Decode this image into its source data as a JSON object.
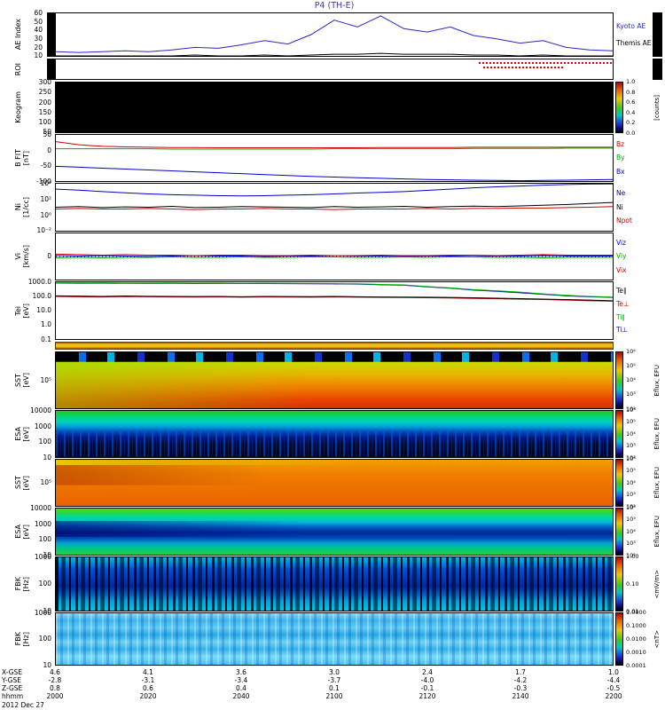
{
  "title": "P4 (TH-E)",
  "panels": {
    "ae": {
      "ylabel": "AE Index",
      "ticks": [
        "60",
        "50",
        "40",
        "30",
        "20",
        "10"
      ],
      "right_labels": [
        {
          "text": "Kyoto AE",
          "color": "#2828c8"
        },
        {
          "text": "Themis AE",
          "color": "#000000"
        }
      ]
    },
    "roi": {
      "ylabel": "ROI"
    },
    "keogram": {
      "ylabel": "Keogram",
      "ticks": [
        "300",
        "250",
        "200",
        "150",
        "100",
        "50"
      ],
      "colorbar": {
        "ticks": [
          "1.0",
          "0.8",
          "0.6",
          "0.4",
          "0.2",
          "0.0"
        ],
        "unit": "[counts]"
      }
    },
    "bfit": {
      "ylabel": "B FIT",
      "yunit": "[nT]",
      "ticks": [
        "50",
        "0",
        "-50",
        "-100"
      ],
      "right_labels": [
        {
          "text": "Bz",
          "color": "#cc0000"
        },
        {
          "text": "By",
          "color": "#00aa00"
        },
        {
          "text": "Bx",
          "color": "#0000cc"
        }
      ]
    },
    "ni": {
      "ylabel": "Ni",
      "yunit": "[1/cc]",
      "ticks": [
        "10⁴",
        "10²",
        "10⁰",
        "10⁻²"
      ],
      "right_labels": [
        {
          "text": "Ne",
          "color": "#0000cc"
        },
        {
          "text": "Ni",
          "color": "#000000"
        },
        {
          "text": "Npot",
          "color": "#cc0000"
        }
      ]
    },
    "vi": {
      "ylabel": "Vi",
      "yunit": "[km/s]",
      "ticks": [
        "0"
      ],
      "right_labels": [
        {
          "text": "Viz",
          "color": "#0000cc"
        },
        {
          "text": "Viy",
          "color": "#00aa00"
        },
        {
          "text": "Vix",
          "color": "#cc0000"
        }
      ]
    },
    "tei": {
      "ylabel": "Tei",
      "yunit": "[eV]",
      "ticks": [
        "1000.0",
        "100.0",
        "10.0",
        "1.0",
        "0.1"
      ],
      "right_labels": [
        {
          "text": "Te∥",
          "color": "#000000"
        },
        {
          "text": "Te⊥",
          "color": "#cc0000"
        },
        {
          "text": "Ti∥",
          "color": "#00aa00"
        },
        {
          "text": "Ti⊥",
          "color": "#0000cc"
        }
      ]
    },
    "sst_ion": {
      "ylabel": "SST",
      "yunit": "[eV]",
      "ticks": [
        "10⁵"
      ],
      "colorbar": {
        "ticks": [
          "10⁶",
          "10⁵",
          "10⁴",
          "10³",
          "10²"
        ],
        "unit": "Eflux, EFU"
      }
    },
    "esa_ion": {
      "ylabel": "ESA",
      "yunit": "[eV]",
      "ticks": [
        "10000",
        "1000",
        "100",
        "10"
      ],
      "colorbar": {
        "ticks": [
          "10⁶",
          "10⁵",
          "10⁴",
          "10³",
          "10²"
        ],
        "unit": "Eflux, EFU"
      }
    },
    "sst_elec": {
      "ylabel": "SST",
      "yunit": "[eV]",
      "ticks": [
        "10⁵"
      ],
      "colorbar": {
        "ticks": [
          "10⁶",
          "10⁵",
          "10⁴",
          "10³",
          "10²"
        ],
        "unit": "Eflux, EFU"
      }
    },
    "esa_elec": {
      "ylabel": "ESA",
      "yunit": "[eV]",
      "ticks": [
        "10000",
        "1000",
        "100",
        "10"
      ],
      "colorbar": {
        "ticks": [
          "10⁶",
          "10⁵",
          "10⁴",
          "10³",
          "10²"
        ],
        "unit": "Eflux, EFU"
      }
    },
    "fbk_e": {
      "ylabel": "FBK",
      "yunit": "[Hz]",
      "ticks": [
        "1000",
        "100",
        "10"
      ],
      "colorbar": {
        "ticks": [
          "1.00",
          "0.10",
          "0.01"
        ],
        "unit": "<mV/m>"
      }
    },
    "fbk_b": {
      "ylabel": "FBK",
      "yunit": "[Hz]",
      "ticks": [
        "1000",
        "100",
        "10"
      ],
      "colorbar": {
        "ticks": [
          "1.0000",
          "0.1000",
          "0.0100",
          "0.0010",
          "0.0001"
        ],
        "unit": "<nT>"
      }
    }
  },
  "time_axis": {
    "rows": [
      {
        "label": "X-GSE",
        "values": [
          "4.6",
          "4.1",
          "3.6",
          "3.0",
          "2.4",
          "1.7",
          "1.0"
        ]
      },
      {
        "label": "Y-GSE",
        "values": [
          "-2.8",
          "-3.1",
          "-3.4",
          "-3.7",
          "-4.0",
          "-4.2",
          "-4.4"
        ]
      },
      {
        "label": "Z-GSE",
        "values": [
          "0.8",
          "0.6",
          "0.4",
          "0.1",
          "-0.1",
          "-0.3",
          "-0.5"
        ]
      },
      {
        "label": "hhmm",
        "values": [
          "2000",
          "2020",
          "2040",
          "2100",
          "2120",
          "2140",
          "2200"
        ]
      }
    ],
    "date_label": "2012 Dec 27"
  },
  "chart_data": [
    {
      "id": "ae",
      "type": "line",
      "ylabel": "AE Index",
      "ylim": [
        10,
        60
      ],
      "log": false,
      "x_start": "2000",
      "x_end": "2200",
      "x": [
        0,
        5,
        10,
        15,
        20,
        25,
        30,
        35,
        40,
        45,
        50,
        55,
        60,
        65,
        70,
        75,
        80,
        85,
        90,
        95,
        100,
        105,
        110,
        115,
        120
      ],
      "series": [
        {
          "name": "Kyoto AE",
          "color": "#2828c8",
          "values": [
            15,
            14,
            15,
            16,
            15,
            17,
            20,
            19,
            23,
            28,
            24,
            35,
            52,
            44,
            57,
            42,
            38,
            44,
            34,
            30,
            25,
            28,
            20,
            17,
            16
          ]
        },
        {
          "name": "Themis AE",
          "color": "#000000",
          "values": [
            10,
            10,
            10,
            10,
            10,
            10,
            11,
            10,
            10,
            11,
            10,
            11,
            12,
            12,
            13,
            12,
            12,
            12,
            11,
            11,
            10,
            11,
            10,
            10,
            10
          ]
        }
      ]
    },
    {
      "id": "bfit",
      "type": "line",
      "ylabel": "B FIT [nT]",
      "ylim": [
        -100,
        50
      ],
      "log": false,
      "x": [
        0,
        5,
        10,
        15,
        20,
        25,
        30,
        35,
        40,
        45,
        50,
        55,
        60,
        65,
        70,
        75,
        80,
        85,
        90,
        95,
        100,
        105,
        110,
        115,
        120
      ],
      "series": [
        {
          "name": "Bz",
          "color": "#cc0000",
          "values": [
            28,
            18,
            13,
            11,
            10,
            9,
            9,
            8,
            8,
            8,
            8,
            8,
            8,
            8,
            9,
            9,
            9,
            9,
            10,
            10,
            10,
            10,
            10,
            10,
            10
          ]
        },
        {
          "name": "By",
          "color": "#00aa00",
          "values": [
            5,
            5,
            5,
            5,
            5,
            4,
            4,
            4,
            4,
            4,
            4,
            4,
            5,
            5,
            5,
            5,
            5,
            5,
            6,
            6,
            6,
            6,
            7,
            7,
            7
          ]
        },
        {
          "name": "Bx",
          "color": "#0000cc",
          "values": [
            -52,
            -55,
            -58,
            -61,
            -64,
            -67,
            -70,
            -73,
            -76,
            -79,
            -82,
            -85,
            -87,
            -89,
            -91,
            -93,
            -95,
            -96,
            -97,
            -98,
            -99,
            -98,
            -97,
            -96,
            -95
          ]
        }
      ]
    },
    {
      "id": "ni",
      "type": "line",
      "ylabel": "Ni [1/cc]",
      "ylim": [
        0.01,
        10000
      ],
      "log": true,
      "x": [
        0,
        5,
        10,
        15,
        20,
        25,
        30,
        35,
        40,
        45,
        50,
        55,
        60,
        65,
        70,
        75,
        80,
        85,
        90,
        95,
        100,
        105,
        110,
        115,
        120
      ],
      "series": [
        {
          "name": "Ne",
          "color": "#0000cc",
          "values": [
            2000,
            1500,
            1000,
            700,
            500,
            400,
            350,
            300,
            280,
            300,
            350,
            400,
            500,
            650,
            800,
            1000,
            1400,
            2000,
            3000,
            4000,
            5000,
            6500,
            8000,
            9000,
            9500
          ]
        },
        {
          "name": "Npot",
          "color": "#cc0000",
          "values": [
            6,
            7,
            6,
            6,
            7,
            6,
            5,
            6,
            6,
            7,
            6,
            6,
            5,
            6,
            6,
            6,
            7,
            6,
            7,
            7,
            8,
            8,
            9,
            10,
            12
          ]
        },
        {
          "name": "Ni",
          "color": "#000000",
          "values": [
            10,
            12,
            9,
            11,
            10,
            13,
            9,
            10,
            12,
            11,
            10,
            9,
            12,
            10,
            11,
            13,
            10,
            12,
            14,
            12,
            15,
            18,
            22,
            30,
            40
          ]
        }
      ]
    },
    {
      "id": "vi",
      "type": "line",
      "ylabel": "Vi [km/s]",
      "ylim": [
        -50,
        50
      ],
      "log": false,
      "zeroline": true,
      "x": [
        0,
        5,
        10,
        15,
        20,
        25,
        30,
        35,
        40,
        45,
        50,
        55,
        60,
        65,
        70,
        75,
        80,
        85,
        90,
        95,
        100,
        105,
        110,
        115,
        120
      ],
      "series": [
        {
          "name": "Viz",
          "color": "#0000cc",
          "values": [
            2,
            1,
            2,
            1,
            0,
            1,
            2,
            1,
            1,
            0,
            1,
            1,
            2,
            1,
            1,
            0,
            1,
            1,
            0,
            1,
            1,
            2,
            1,
            1,
            1
          ]
        },
        {
          "name": "Viy",
          "color": "#00aa00",
          "values": [
            -3,
            -2,
            -3,
            -2,
            -2,
            -1,
            -2,
            -2,
            -1,
            -2,
            -2,
            -1,
            -1,
            -2,
            -2,
            -1,
            -2,
            -1,
            -1,
            -2,
            -2,
            -3,
            -2,
            -2,
            -2
          ]
        },
        {
          "name": "Vix",
          "color": "#cc0000",
          "values": [
            5,
            4,
            3,
            4,
            3,
            3,
            2,
            3,
            3,
            2,
            2,
            3,
            2,
            2,
            3,
            2,
            2,
            3,
            3,
            2,
            3,
            4,
            3,
            3,
            3
          ]
        }
      ]
    },
    {
      "id": "tei",
      "type": "line",
      "ylabel": "Tei [eV]",
      "ylim": [
        0.1,
        1000
      ],
      "log": true,
      "x": [
        0,
        5,
        10,
        15,
        20,
        25,
        30,
        35,
        40,
        45,
        50,
        55,
        60,
        65,
        70,
        75,
        80,
        85,
        90,
        95,
        100,
        105,
        110,
        115,
        120
      ],
      "series": [
        {
          "name": "Ti⊥",
          "color": "#0000cc",
          "values": [
            860,
            840,
            850,
            830,
            820,
            840,
            810,
            820,
            800,
            810,
            790,
            780,
            760,
            740,
            660,
            610,
            470,
            380,
            280,
            230,
            180,
            140,
            110,
            95,
            85
          ]
        },
        {
          "name": "Te⊥",
          "color": "#cc0000",
          "values": [
            100,
            95,
            92,
            98,
            94,
            92,
            90,
            92,
            88,
            92,
            90,
            88,
            92,
            88,
            85,
            83,
            80,
            78,
            73,
            68,
            64,
            60,
            55,
            50,
            46
          ]
        },
        {
          "name": "Ti∥",
          "color": "#00aa00",
          "values": [
            900,
            880,
            900,
            870,
            860,
            880,
            850,
            860,
            840,
            850,
            830,
            820,
            800,
            780,
            700,
            650,
            500,
            400,
            300,
            250,
            200,
            150,
            120,
            100,
            90
          ]
        },
        {
          "name": "Te∥",
          "color": "#000000",
          "values": [
            110,
            105,
            100,
            108,
            102,
            100,
            98,
            100,
            95,
            100,
            98,
            96,
            100,
            95,
            92,
            90,
            88,
            85,
            80,
            75,
            70,
            65,
            60,
            55,
            50
          ]
        }
      ]
    },
    {
      "id": "keogram",
      "type": "heatmap",
      "ylabel": "Keogram",
      "y_ticks": [
        300,
        250,
        200,
        150,
        100,
        50
      ],
      "z_range": [
        0.0,
        1.0
      ],
      "z_unit": "[counts]",
      "description": "no data, panel entirely black"
    },
    {
      "id": "sst_ion",
      "type": "heatmap",
      "ylabel": "SST [eV]",
      "y_tick": "10⁵",
      "z_range": [
        "10²",
        "10⁶"
      ],
      "z_unit": "Eflux, EFU",
      "description": "top energy band black with blue blocks; green-yellow flux becoming orange-red toward lower energies and later times"
    },
    {
      "id": "esa_ion",
      "type": "heatmap",
      "ylabel": "ESA [eV]",
      "y_ticks": [
        10000,
        1000,
        100,
        10
      ],
      "z_range": [
        "10²",
        "10⁶"
      ],
      "z_unit": "Eflux, EFU",
      "description": "bright green-cyan at high energies, dark blue/black speckle at low energies"
    },
    {
      "id": "sst_elec",
      "type": "heatmap",
      "ylabel": "SST [eV]",
      "y_tick": "10⁵",
      "z_range": [
        "10²",
        "10⁶"
      ],
      "z_unit": "Eflux, EFU",
      "description": "nearly uniform orange flux, yellow band at top left, darker red patch upper left"
    },
    {
      "id": "esa_elec",
      "type": "heatmap",
      "ylabel": "ESA [eV]",
      "y_ticks": [
        10000,
        1000,
        100,
        10
      ],
      "z_range": [
        "10²",
        "10⁶"
      ],
      "z_unit": "Eflux, EFU",
      "description": "green top band, cyan layers, dark blue mid-energy band thinning toward later times"
    },
    {
      "id": "fbk_e",
      "type": "heatmap",
      "ylabel": "FBK [Hz]",
      "y_ticks": [
        1000,
        100,
        10
      ],
      "z_range": [
        0.01,
        1.0
      ],
      "z_unit": "<mV/m>",
      "description": "blue background with dense black vertical striping, brighter cyan top and bottom rows"
    },
    {
      "id": "fbk_b",
      "type": "heatmap",
      "ylabel": "FBK [Hz]",
      "y_ticks": [
        1000,
        100,
        10
      ],
      "z_range": [
        0.0001,
        1.0
      ],
      "z_unit": "<nT>",
      "description": "light cyan-blue banded spectrogram with faint vertical striping"
    }
  ]
}
